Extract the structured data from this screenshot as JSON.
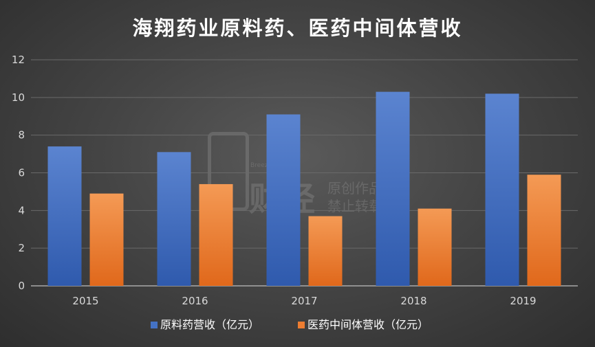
{
  "chart_data": {
    "type": "bar",
    "title": "海翔药业原料药、医药中间体营收",
    "categories": [
      "2015",
      "2016",
      "2017",
      "2018",
      "2019"
    ],
    "series": [
      {
        "name": "原料药营收（亿元）",
        "color": "#4472c4",
        "values": [
          7.4,
          7.1,
          9.1,
          10.3,
          10.2
        ]
      },
      {
        "name": "医药中间体营收（亿元）",
        "color": "#ed7d31",
        "values": [
          4.9,
          5.4,
          3.7,
          4.1,
          5.9
        ]
      }
    ],
    "xlabel": "",
    "ylabel": "",
    "ylim": [
      0,
      12
    ],
    "yticks": [
      0,
      2,
      4,
      6,
      8,
      10,
      12
    ],
    "grid": true,
    "legend": "bottom"
  },
  "watermark": {
    "brand_en": "Breez Finance",
    "brand_cn": "财经",
    "line1": "原创作品",
    "line2": "禁止转载"
  }
}
